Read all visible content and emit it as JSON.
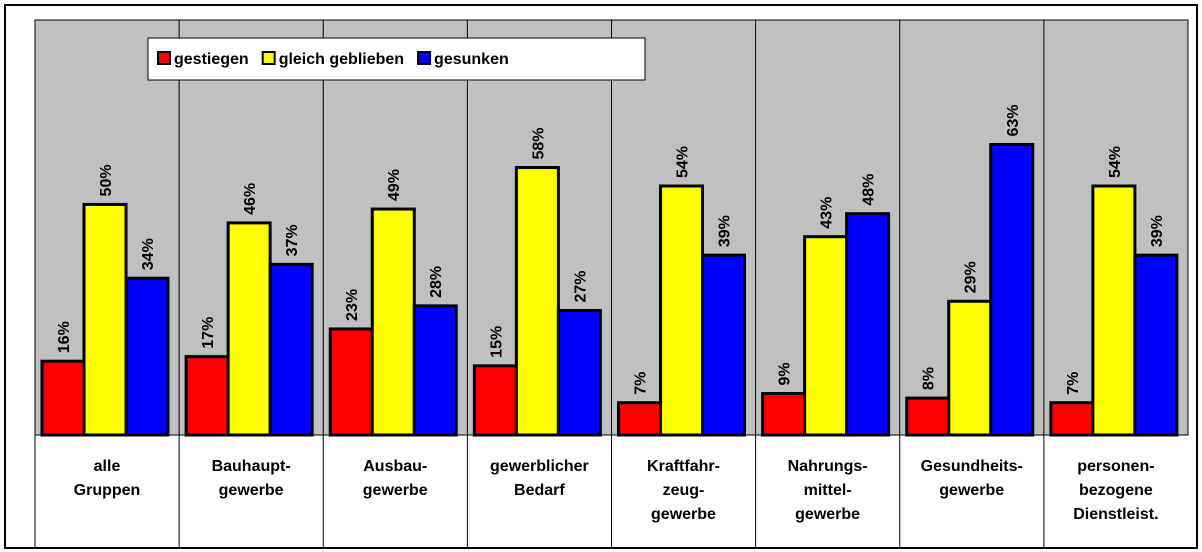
{
  "chart_data": {
    "type": "bar",
    "categories": [
      "alle\nGruppen",
      "Bauhaupt-\ngewerbe",
      "Ausbau-\ngewerbe",
      "gewerblicher\nBedarf",
      "Kraftfahr-\nzeug-\ngewerbe",
      "Nahrungs-\nmittel-\ngewerbe",
      "Gesundheits-\ngewerbe",
      "personen-\nbezogene\nDienstleist."
    ],
    "series": [
      {
        "name": "gestiegen",
        "color": "#ff0000",
        "values": [
          16,
          17,
          23,
          15,
          7,
          9,
          8,
          7
        ],
        "value_labels": [
          "16%",
          "17%",
          "23%",
          "15%",
          "7%",
          "9%",
          "8%",
          "7%"
        ]
      },
      {
        "name": "gleich geblieben",
        "color": "#ffff00",
        "values": [
          50,
          46,
          49,
          58,
          54,
          43,
          29,
          54
        ],
        "value_labels": [
          "50%",
          "46%",
          "49%",
          "58%",
          "54%",
          "43%",
          "29%",
          "54%"
        ]
      },
      {
        "name": "gesunken",
        "color": "#0000ff",
        "values": [
          34,
          37,
          28,
          27,
          39,
          48,
          63,
          39
        ],
        "value_labels": [
          "34%",
          "37%",
          "28%",
          "27%",
          "39%",
          "48%",
          "63%",
          "39%"
        ]
      }
    ],
    "ylim": [
      0,
      90
    ],
    "legend": "top"
  }
}
